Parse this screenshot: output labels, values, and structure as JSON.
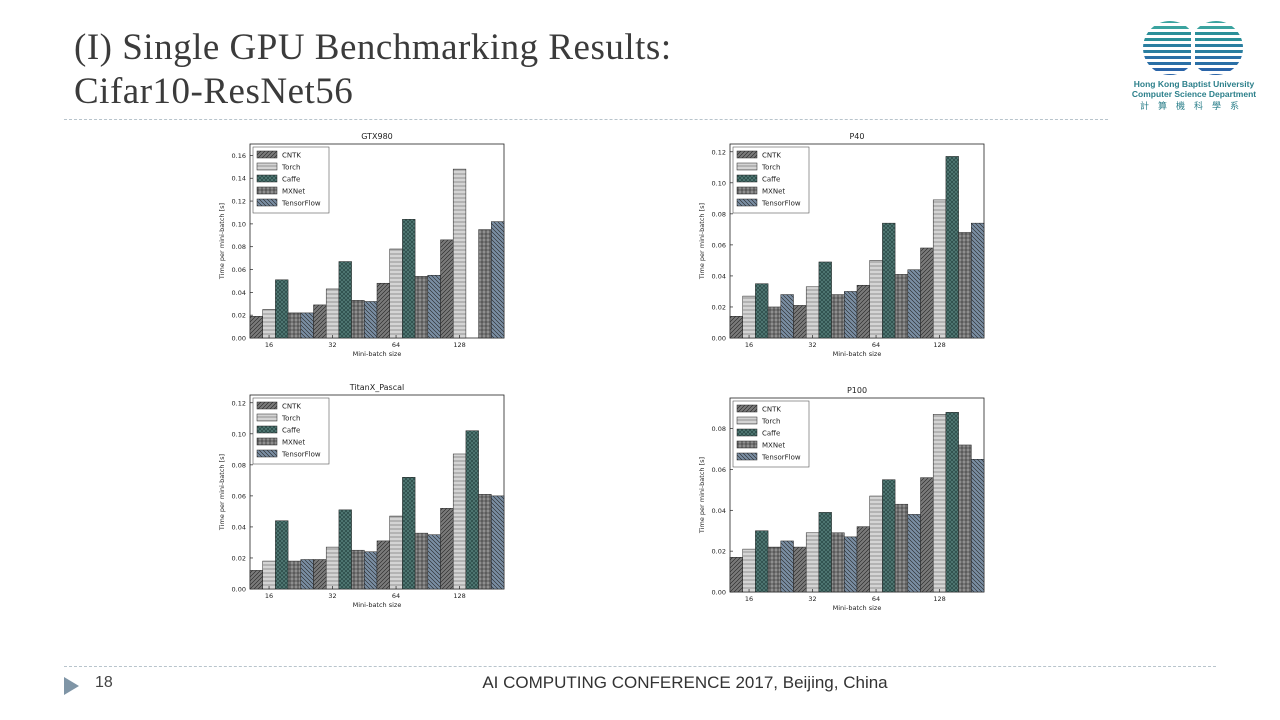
{
  "slide": {
    "title_line1": "(I) Single GPU Benchmarking Results:",
    "title_line2": "Cifar10-ResNet56",
    "logo": {
      "line1": "Hong Kong Baptist University",
      "line2": "Computer Science Department",
      "line3": "計算機科學系"
    },
    "page_number": "18",
    "footer": "AI COMPUTING CONFERENCE 2017, Beijing, China"
  },
  "styles": {
    "series": [
      {
        "fill": "#7a7a7a",
        "pattern": "diag"
      },
      {
        "fill": "#d4d4d4",
        "pattern": "hline"
      },
      {
        "fill": "#2f4f4c",
        "pattern": "cross"
      },
      {
        "fill": "#8f8f8f",
        "pattern": "grid"
      },
      {
        "fill": "#7a8ea3",
        "pattern": "diag2"
      }
    ]
  },
  "chart_data": [
    {
      "type": "bar",
      "title": "GTX980",
      "xlabel": "Mini-batch size",
      "ylabel": "Time per mini-batch [s]",
      "categories": [
        "16",
        "32",
        "64",
        "128"
      ],
      "ylim": [
        0,
        0.17
      ],
      "yticks": [
        "0.00",
        "0.02",
        "0.04",
        "0.06",
        "0.08",
        "0.10",
        "0.12",
        "0.14",
        "0.16"
      ],
      "legend_position": "top-left",
      "series": [
        {
          "name": "CNTK",
          "values": [
            0.019,
            0.029,
            0.048,
            0.086
          ]
        },
        {
          "name": "Torch",
          "values": [
            0.025,
            0.043,
            0.078,
            0.148
          ]
        },
        {
          "name": "Caffe",
          "values": [
            0.051,
            0.067,
            0.104,
            0
          ]
        },
        {
          "name": "MXNet",
          "values": [
            0.022,
            0.033,
            0.054,
            0.095
          ]
        },
        {
          "name": "TensorFlow",
          "values": [
            0.022,
            0.032,
            0.055,
            0.102
          ]
        }
      ]
    },
    {
      "type": "bar",
      "title": "P40",
      "xlabel": "Mini-batch size",
      "ylabel": "Time per mini-batch [s]",
      "categories": [
        "16",
        "32",
        "64",
        "128"
      ],
      "ylim": [
        0,
        0.125
      ],
      "yticks": [
        "0.00",
        "0.02",
        "0.04",
        "0.06",
        "0.08",
        "0.10",
        "0.12"
      ],
      "legend_position": "top-left",
      "series": [
        {
          "name": "CNTK",
          "values": [
            0.014,
            0.021,
            0.034,
            0.058
          ]
        },
        {
          "name": "Torch",
          "values": [
            0.027,
            0.033,
            0.05,
            0.089
          ]
        },
        {
          "name": "Caffe",
          "values": [
            0.035,
            0.049,
            0.074,
            0.117
          ]
        },
        {
          "name": "MXNet",
          "values": [
            0.02,
            0.028,
            0.041,
            0.068
          ]
        },
        {
          "name": "TensorFlow",
          "values": [
            0.028,
            0.03,
            0.044,
            0.074
          ]
        }
      ]
    },
    {
      "type": "bar",
      "title": "TitanX_Pascal",
      "xlabel": "Mini-batch size",
      "ylabel": "Time per mini-batch [s]",
      "categories": [
        "16",
        "32",
        "64",
        "128"
      ],
      "ylim": [
        0,
        0.125
      ],
      "yticks": [
        "0.00",
        "0.02",
        "0.04",
        "0.06",
        "0.08",
        "0.10",
        "0.12"
      ],
      "legend_position": "top-left",
      "series": [
        {
          "name": "CNTK",
          "values": [
            0.012,
            0.019,
            0.031,
            0.052
          ]
        },
        {
          "name": "Torch",
          "values": [
            0.018,
            0.027,
            0.047,
            0.087
          ]
        },
        {
          "name": "Caffe",
          "values": [
            0.044,
            0.051,
            0.072,
            0.102
          ]
        },
        {
          "name": "MXNet",
          "values": [
            0.018,
            0.025,
            0.036,
            0.061
          ]
        },
        {
          "name": "TensorFlow",
          "values": [
            0.019,
            0.024,
            0.035,
            0.06
          ]
        }
      ]
    },
    {
      "type": "bar",
      "title": "P100",
      "xlabel": "Mini-batch size",
      "ylabel": "Time per mini-batch [s]",
      "categories": [
        "16",
        "32",
        "64",
        "128"
      ],
      "ylim": [
        0,
        0.095
      ],
      "yticks": [
        "0.00",
        "0.02",
        "0.04",
        "0.06",
        "0.08"
      ],
      "legend_position": "top-left",
      "series": [
        {
          "name": "CNTK",
          "values": [
            0.017,
            0.022,
            0.032,
            0.056
          ]
        },
        {
          "name": "Torch",
          "values": [
            0.021,
            0.029,
            0.047,
            0.087
          ]
        },
        {
          "name": "Caffe",
          "values": [
            0.03,
            0.039,
            0.055,
            0.088
          ]
        },
        {
          "name": "MXNet",
          "values": [
            0.022,
            0.029,
            0.043,
            0.072
          ]
        },
        {
          "name": "TensorFlow",
          "values": [
            0.025,
            0.027,
            0.038,
            0.065
          ]
        }
      ]
    }
  ]
}
